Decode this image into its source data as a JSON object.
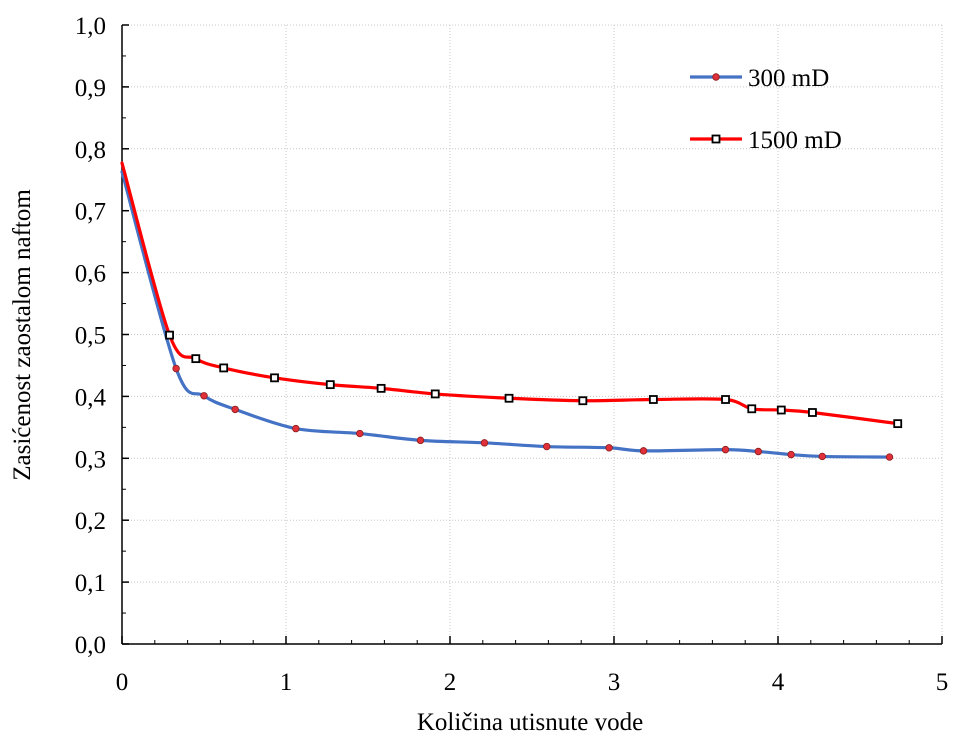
{
  "chart_data": {
    "type": "line",
    "xlabel": "Količina utisnute vode",
    "ylabel": "Zasićenost zaostalom naftom",
    "xlim": [
      0,
      5
    ],
    "ylim": [
      0.0,
      1.0
    ],
    "x_ticks": [
      "0",
      "1",
      "2",
      "3",
      "4",
      "5"
    ],
    "y_ticks": [
      "0,0",
      "0,1",
      "0,2",
      "0,3",
      "0,4",
      "0,5",
      "0,6",
      "0,7",
      "0,8",
      "0,9",
      "1,0"
    ],
    "grid": "dotted",
    "legend_position": "top-right",
    "series": [
      {
        "name": "300 mD",
        "color": "#4472C4",
        "marker": "circle",
        "marker_color": "#E0303A",
        "x": [
          0,
          0.33,
          0.5,
          0.69,
          1.06,
          1.45,
          1.82,
          2.21,
          2.59,
          2.97,
          3.18,
          3.68,
          3.88,
          4.08,
          4.27,
          4.68
        ],
        "y": [
          0.763,
          0.445,
          0.401,
          0.379,
          0.348,
          0.34,
          0.329,
          0.325,
          0.319,
          0.317,
          0.312,
          0.314,
          0.311,
          0.306,
          0.303,
          0.302
        ],
        "marker_flags": [
          false,
          true,
          true,
          true,
          true,
          true,
          true,
          true,
          true,
          true,
          true,
          true,
          true,
          true,
          true,
          true
        ]
      },
      {
        "name": "1500 mD",
        "color": "#FF0000",
        "marker": "square",
        "marker_color": "#000000",
        "x": [
          0,
          0.29,
          0.45,
          0.62,
          0.93,
          1.27,
          1.58,
          1.91,
          2.36,
          2.81,
          3.24,
          3.68,
          3.84,
          4.02,
          4.21,
          4.73
        ],
        "y": [
          0.777,
          0.499,
          0.461,
          0.446,
          0.43,
          0.419,
          0.413,
          0.404,
          0.397,
          0.393,
          0.395,
          0.395,
          0.38,
          0.378,
          0.374,
          0.356
        ],
        "marker_flags": [
          false,
          true,
          true,
          true,
          true,
          true,
          true,
          true,
          true,
          true,
          true,
          true,
          true,
          true,
          true,
          true
        ]
      }
    ]
  }
}
